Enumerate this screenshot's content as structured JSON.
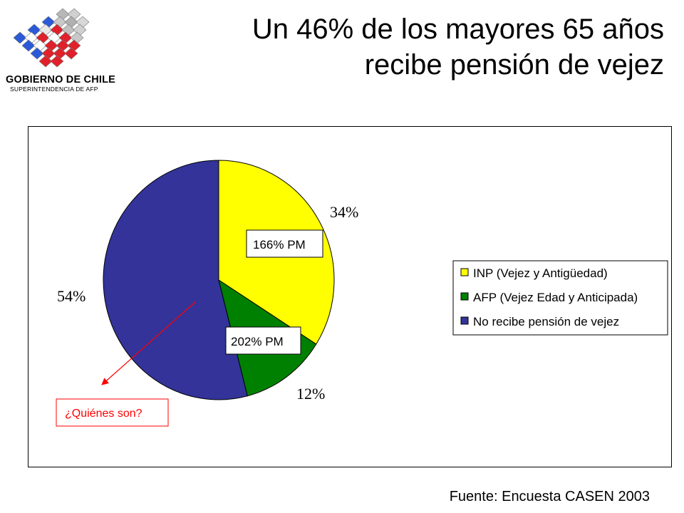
{
  "header": {
    "title_line1": "Un 46% de los mayores 65 años",
    "title_line2": "recibe pensión de vejez",
    "logo_text_main": "GOBIERNO DE CHILE",
    "logo_text_sub": "SUPERINTENDENCIA DE AFP"
  },
  "footer": {
    "source": "Fuente: Encuesta CASEN 2003"
  },
  "colors": {
    "inp": "#ffff00",
    "afp": "#008000",
    "none": "#333399",
    "arrow": "#ff0000"
  },
  "chart_data": {
    "type": "pie",
    "categories": [
      "INP (Vejez y Antigüedad)",
      "AFP (Vejez Edad y Anticipada)",
      "No recibe pensión de vejez"
    ],
    "values": [
      34,
      12,
      54
    ],
    "labels": [
      "34%",
      "12%",
      "54%"
    ],
    "legend_placement": "right",
    "annotations": {
      "inp_pm": "166% PM",
      "afp_pm": "202% PM",
      "question": "¿Quiénes son?"
    }
  }
}
